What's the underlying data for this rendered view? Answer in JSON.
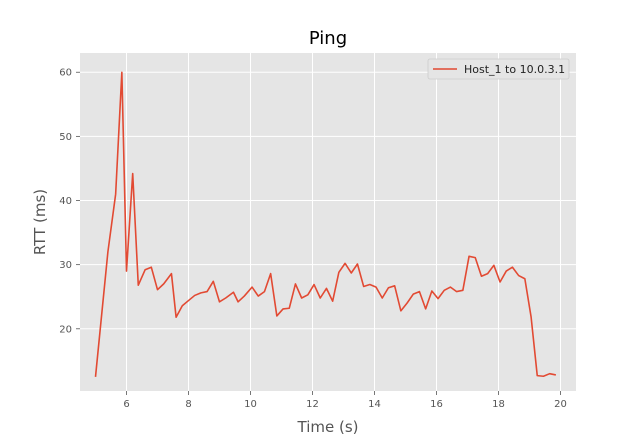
{
  "chart_data": {
    "type": "line",
    "title": "Ping",
    "xlabel": "Time (s)",
    "ylabel": "RTT (ms)",
    "xlim": [
      4.5,
      20.5
    ],
    "ylim": [
      10.3,
      63
    ],
    "xticks": [
      6,
      8,
      10,
      12,
      14,
      16,
      18,
      20
    ],
    "yticks": [
      20,
      30,
      40,
      50,
      60
    ],
    "grid": true,
    "legend_position": "top-right",
    "colors": {
      "background": "#e5e5e5",
      "grid": "#ffffff",
      "series": "#e24a33"
    },
    "series": [
      {
        "name": "Host_1 to 10.0.3.1",
        "x": [
          5.0,
          5.4,
          5.65,
          5.85,
          6.0,
          6.2,
          6.38,
          6.6,
          6.8,
          7.0,
          7.2,
          7.45,
          7.6,
          7.8,
          8.0,
          8.2,
          8.4,
          8.6,
          8.8,
          9.0,
          9.2,
          9.45,
          9.6,
          9.8,
          10.05,
          10.25,
          10.45,
          10.65,
          10.85,
          11.05,
          11.25,
          11.45,
          11.65,
          11.85,
          12.05,
          12.25,
          12.45,
          12.65,
          12.85,
          13.05,
          13.25,
          13.45,
          13.65,
          13.85,
          14.05,
          14.25,
          14.45,
          14.65,
          14.85,
          15.05,
          15.25,
          15.45,
          15.65,
          15.85,
          16.05,
          16.25,
          16.45,
          16.65,
          16.85,
          17.05,
          17.25,
          17.45,
          17.65,
          17.85,
          18.05,
          18.25,
          18.45,
          18.65,
          18.85,
          19.05,
          19.25,
          19.45,
          19.65,
          19.85
        ],
        "y": [
          12.5,
          32,
          41,
          60,
          29,
          44.2,
          26.8,
          29.2,
          29.6,
          26.1,
          27,
          28.6,
          21.8,
          23.6,
          24.4,
          25.2,
          25.6,
          25.8,
          27.4,
          24.2,
          24.8,
          25.7,
          24.2,
          25.1,
          26.5,
          25.1,
          25.8,
          28.6,
          22,
          23.1,
          23.2,
          27,
          24.8,
          25.3,
          26.9,
          24.8,
          26.3,
          24.3,
          28.8,
          30.2,
          28.7,
          30.1,
          26.6,
          26.9,
          26.5,
          24.8,
          26.4,
          26.7,
          22.8,
          24,
          25.4,
          25.8,
          23.1,
          25.9,
          24.7,
          26,
          26.5,
          25.8,
          26,
          31.3,
          31.1,
          28.2,
          28.6,
          29.9,
          27.3,
          29,
          29.6,
          28.3,
          27.8,
          21.9,
          12.7,
          12.6,
          13,
          12.8
        ]
      }
    ]
  }
}
